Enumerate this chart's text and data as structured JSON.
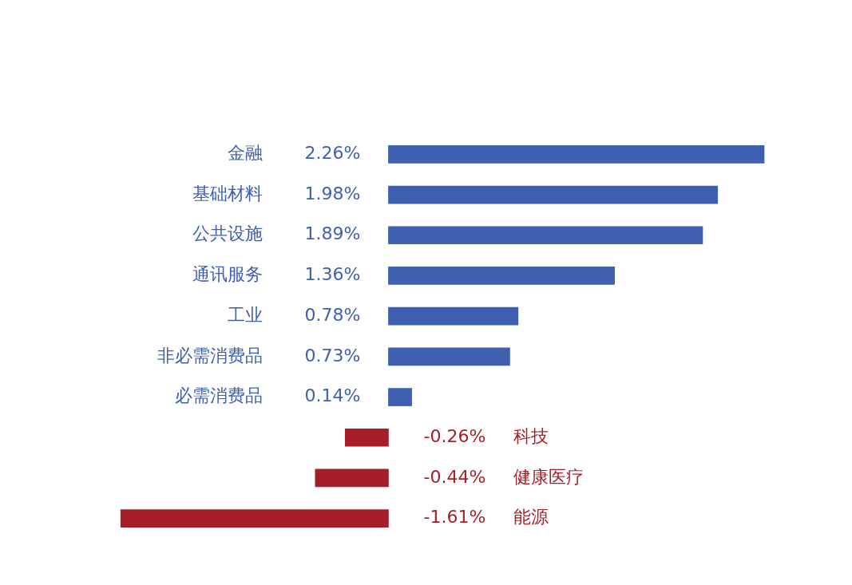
{
  "chart_data": {
    "type": "bar",
    "orientation": "horizontal",
    "categories": [
      "金融",
      "基础材料",
      "公共设施",
      "通讯服务",
      "工业",
      "非必需消费品",
      "必需消费品",
      "科技",
      "健康医疗",
      "能源"
    ],
    "values": [
      2.26,
      1.98,
      1.89,
      1.36,
      0.78,
      0.73,
      0.14,
      -0.26,
      -0.44,
      -1.61
    ],
    "value_labels": [
      "2.26%",
      "1.98%",
      "1.89%",
      "1.36%",
      "0.78%",
      "0.73%",
      "0.14%",
      "-0.26%",
      "-0.44%",
      "-1.61%"
    ],
    "colors": [
      "#3f5fb0",
      "#3f5fb0",
      "#3f5fb0",
      "#3f5fb0",
      "#3f5fb0",
      "#3f5fb0",
      "#3f5fb0",
      "#a61f28",
      "#a61f28",
      "#a61f28"
    ],
    "legend": false,
    "tick_labels": "y"
  }
}
